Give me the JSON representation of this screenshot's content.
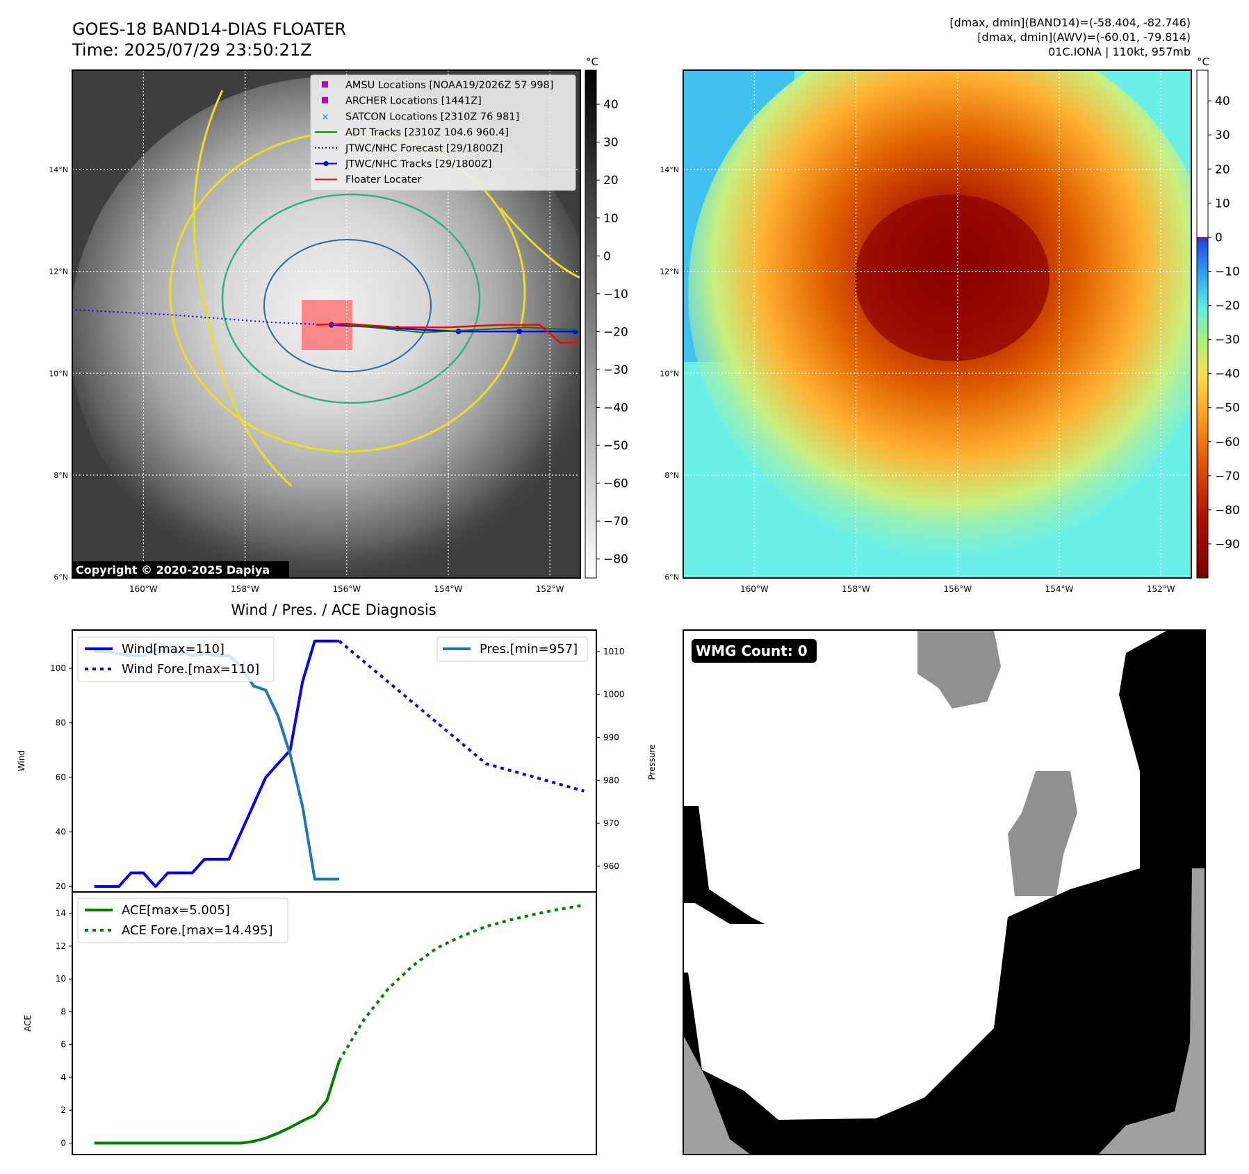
{
  "header": {
    "title": "GOES-18 BAND14-DIAS FLOATER",
    "time": "Time: 2025/07/29 23:50:21Z",
    "info_line1": "[dmax, dmin](BAND14)=(-58.404, -82.746)",
    "info_line2": "[dmax, dmin](AWV)=(-60.01, -79.814)",
    "info_line3": "01C.IONA | 110kt, 957mb"
  },
  "map": {
    "lat_labels": [
      "14°N",
      "12°N",
      "10°N",
      "8°N",
      "6°N"
    ],
    "lat_values": [
      14,
      12,
      10,
      8,
      6
    ],
    "lon_labels": [
      "160°W",
      "158°W",
      "156°W",
      "154°W",
      "152°W"
    ],
    "lon_values": [
      -160,
      -158,
      -156,
      -154,
      -152
    ],
    "lon_range": [
      -161.4,
      -151.4
    ],
    "lat_range": [
      5.98,
      15.95
    ],
    "copyright": "Copyright © 2020-2025 Dapiya",
    "legend": [
      {
        "label": "AMSU Locations [NOAA19/2026Z 57 998]",
        "kind": "square",
        "color": "#c000c0"
      },
      {
        "label": "ARCHER Locations [1441Z]",
        "kind": "square",
        "color": "#c000c0"
      },
      {
        "label": "SATCON Locations [2310Z 76 981]",
        "kind": "x",
        "color": "#20b0b0"
      },
      {
        "label": "ADT Tracks [2310Z 104.6 960.4]",
        "kind": "line",
        "color": "#008000"
      },
      {
        "label": "JTWC/NHC Forecast [29/1800Z]",
        "kind": "dotted",
        "color": "#0000ff"
      },
      {
        "label": "JTWC/NHC Tracks [29/1800Z]",
        "kind": "line-dot",
        "color": "#0000ff"
      },
      {
        "label": "Floater Locater",
        "kind": "line",
        "color": "#ff0000"
      }
    ]
  },
  "colorbar_left": {
    "unit": "°C",
    "ticks": [
      "40",
      "30",
      "20",
      "10",
      "0",
      "−10",
      "−20",
      "−30",
      "−40",
      "−50",
      "−60",
      "−70",
      "−80"
    ],
    "tick_values": [
      40,
      30,
      20,
      10,
      0,
      -10,
      -20,
      -30,
      -40,
      -50,
      -60,
      -70,
      -80
    ],
    "range": [
      -85,
      49
    ]
  },
  "colorbar_right": {
    "unit": "°C",
    "ticks": [
      "40",
      "30",
      "20",
      "10",
      "0",
      "−10",
      "−20",
      "−30",
      "−40",
      "−50",
      "−60",
      "−70",
      "−80",
      "−90"
    ],
    "tick_values": [
      40,
      30,
      20,
      10,
      0,
      -10,
      -20,
      -30,
      -40,
      -50,
      -60,
      -70,
      -80,
      -90
    ],
    "range": [
      -100,
      49
    ]
  },
  "wmg": {
    "label": "WMG Count: 0"
  },
  "chart_data": [
    {
      "type": "line",
      "title": "Wind / Pres. / ACE Diagnosis",
      "ylabel": "Wind",
      "ylabel2": "Pressure",
      "ylim": [
        18,
        114
      ],
      "ylim2": [
        954,
        1015
      ],
      "yticks": [
        20,
        40,
        60,
        80,
        100
      ],
      "yticks2": [
        960,
        970,
        980,
        990,
        1000,
        1010
      ],
      "x": [
        0,
        1,
        2,
        3,
        4,
        5,
        6,
        7,
        8,
        9,
        10,
        11,
        12,
        13,
        14,
        15,
        16,
        17,
        18,
        19,
        20,
        21,
        22,
        23,
        24,
        25,
        26,
        27,
        28,
        29,
        30,
        31,
        32,
        33,
        34,
        35,
        36,
        37,
        38,
        39
      ],
      "xlim": [
        -1.8,
        41
      ],
      "series": [
        {
          "name": "Wind[max=110]",
          "axis": "left",
          "style": "solid",
          "color": "#0000ff",
          "x": [
            0,
            1,
            2,
            3,
            4,
            5,
            6,
            7,
            8,
            9,
            10,
            11,
            12,
            13,
            14,
            15,
            16,
            17,
            18,
            19,
            20
          ],
          "values": [
            20,
            20,
            20,
            25,
            25,
            20,
            25,
            25,
            25,
            30,
            30,
            30,
            40,
            50,
            60,
            65,
            70,
            95,
            110,
            110,
            110
          ]
        },
        {
          "name": "Wind Fore.[max=110]",
          "axis": "left",
          "style": "dotted",
          "color": "#0000ff",
          "x": [
            20,
            24,
            28,
            32,
            36,
            40
          ],
          "values": [
            110,
            95,
            80,
            65,
            60,
            55
          ]
        },
        {
          "name": "Pres.[min=957]",
          "axis": "right",
          "style": "solid",
          "color": "#1f77b4",
          "x": [
            0,
            1,
            2,
            3,
            4,
            5,
            6,
            7,
            8,
            9,
            10,
            11,
            12,
            13,
            14,
            15,
            16,
            17,
            18,
            19,
            20
          ],
          "values": [
            1010,
            1010,
            1009.5,
            1009,
            1009,
            1010.5,
            1010,
            1010,
            1009,
            1009.5,
            1009,
            1009,
            1006.5,
            1002,
            1001,
            995,
            986,
            974,
            957,
            957,
            957
          ]
        }
      ]
    },
    {
      "type": "line",
      "ylabel": "ACE",
      "ylim": [
        -0.7,
        15.3
      ],
      "yticks": [
        0,
        2,
        4,
        6,
        8,
        10,
        12,
        14
      ],
      "series": [
        {
          "name": "ACE[max=5.005]",
          "style": "solid",
          "color": "#008000",
          "x": [
            0,
            1,
            2,
            3,
            4,
            5,
            6,
            7,
            8,
            9,
            10,
            11,
            12,
            13,
            14,
            15,
            16,
            17,
            18,
            19,
            20
          ],
          "values": [
            0,
            0,
            0,
            0,
            0,
            0,
            0,
            0,
            0,
            0,
            0,
            0,
            0,
            0.1,
            0.3,
            0.6,
            0.95,
            1.35,
            1.7,
            2.6,
            5.005
          ]
        },
        {
          "name": "ACE Fore.[max=14.495]",
          "style": "dotted",
          "color": "#008000",
          "x": [
            20,
            22,
            24,
            26,
            28,
            30,
            32,
            34,
            36,
            38,
            40
          ],
          "values": [
            5.005,
            7.5,
            9.4,
            10.8,
            11.9,
            12.6,
            13.2,
            13.6,
            13.95,
            14.25,
            14.495
          ]
        }
      ]
    }
  ]
}
